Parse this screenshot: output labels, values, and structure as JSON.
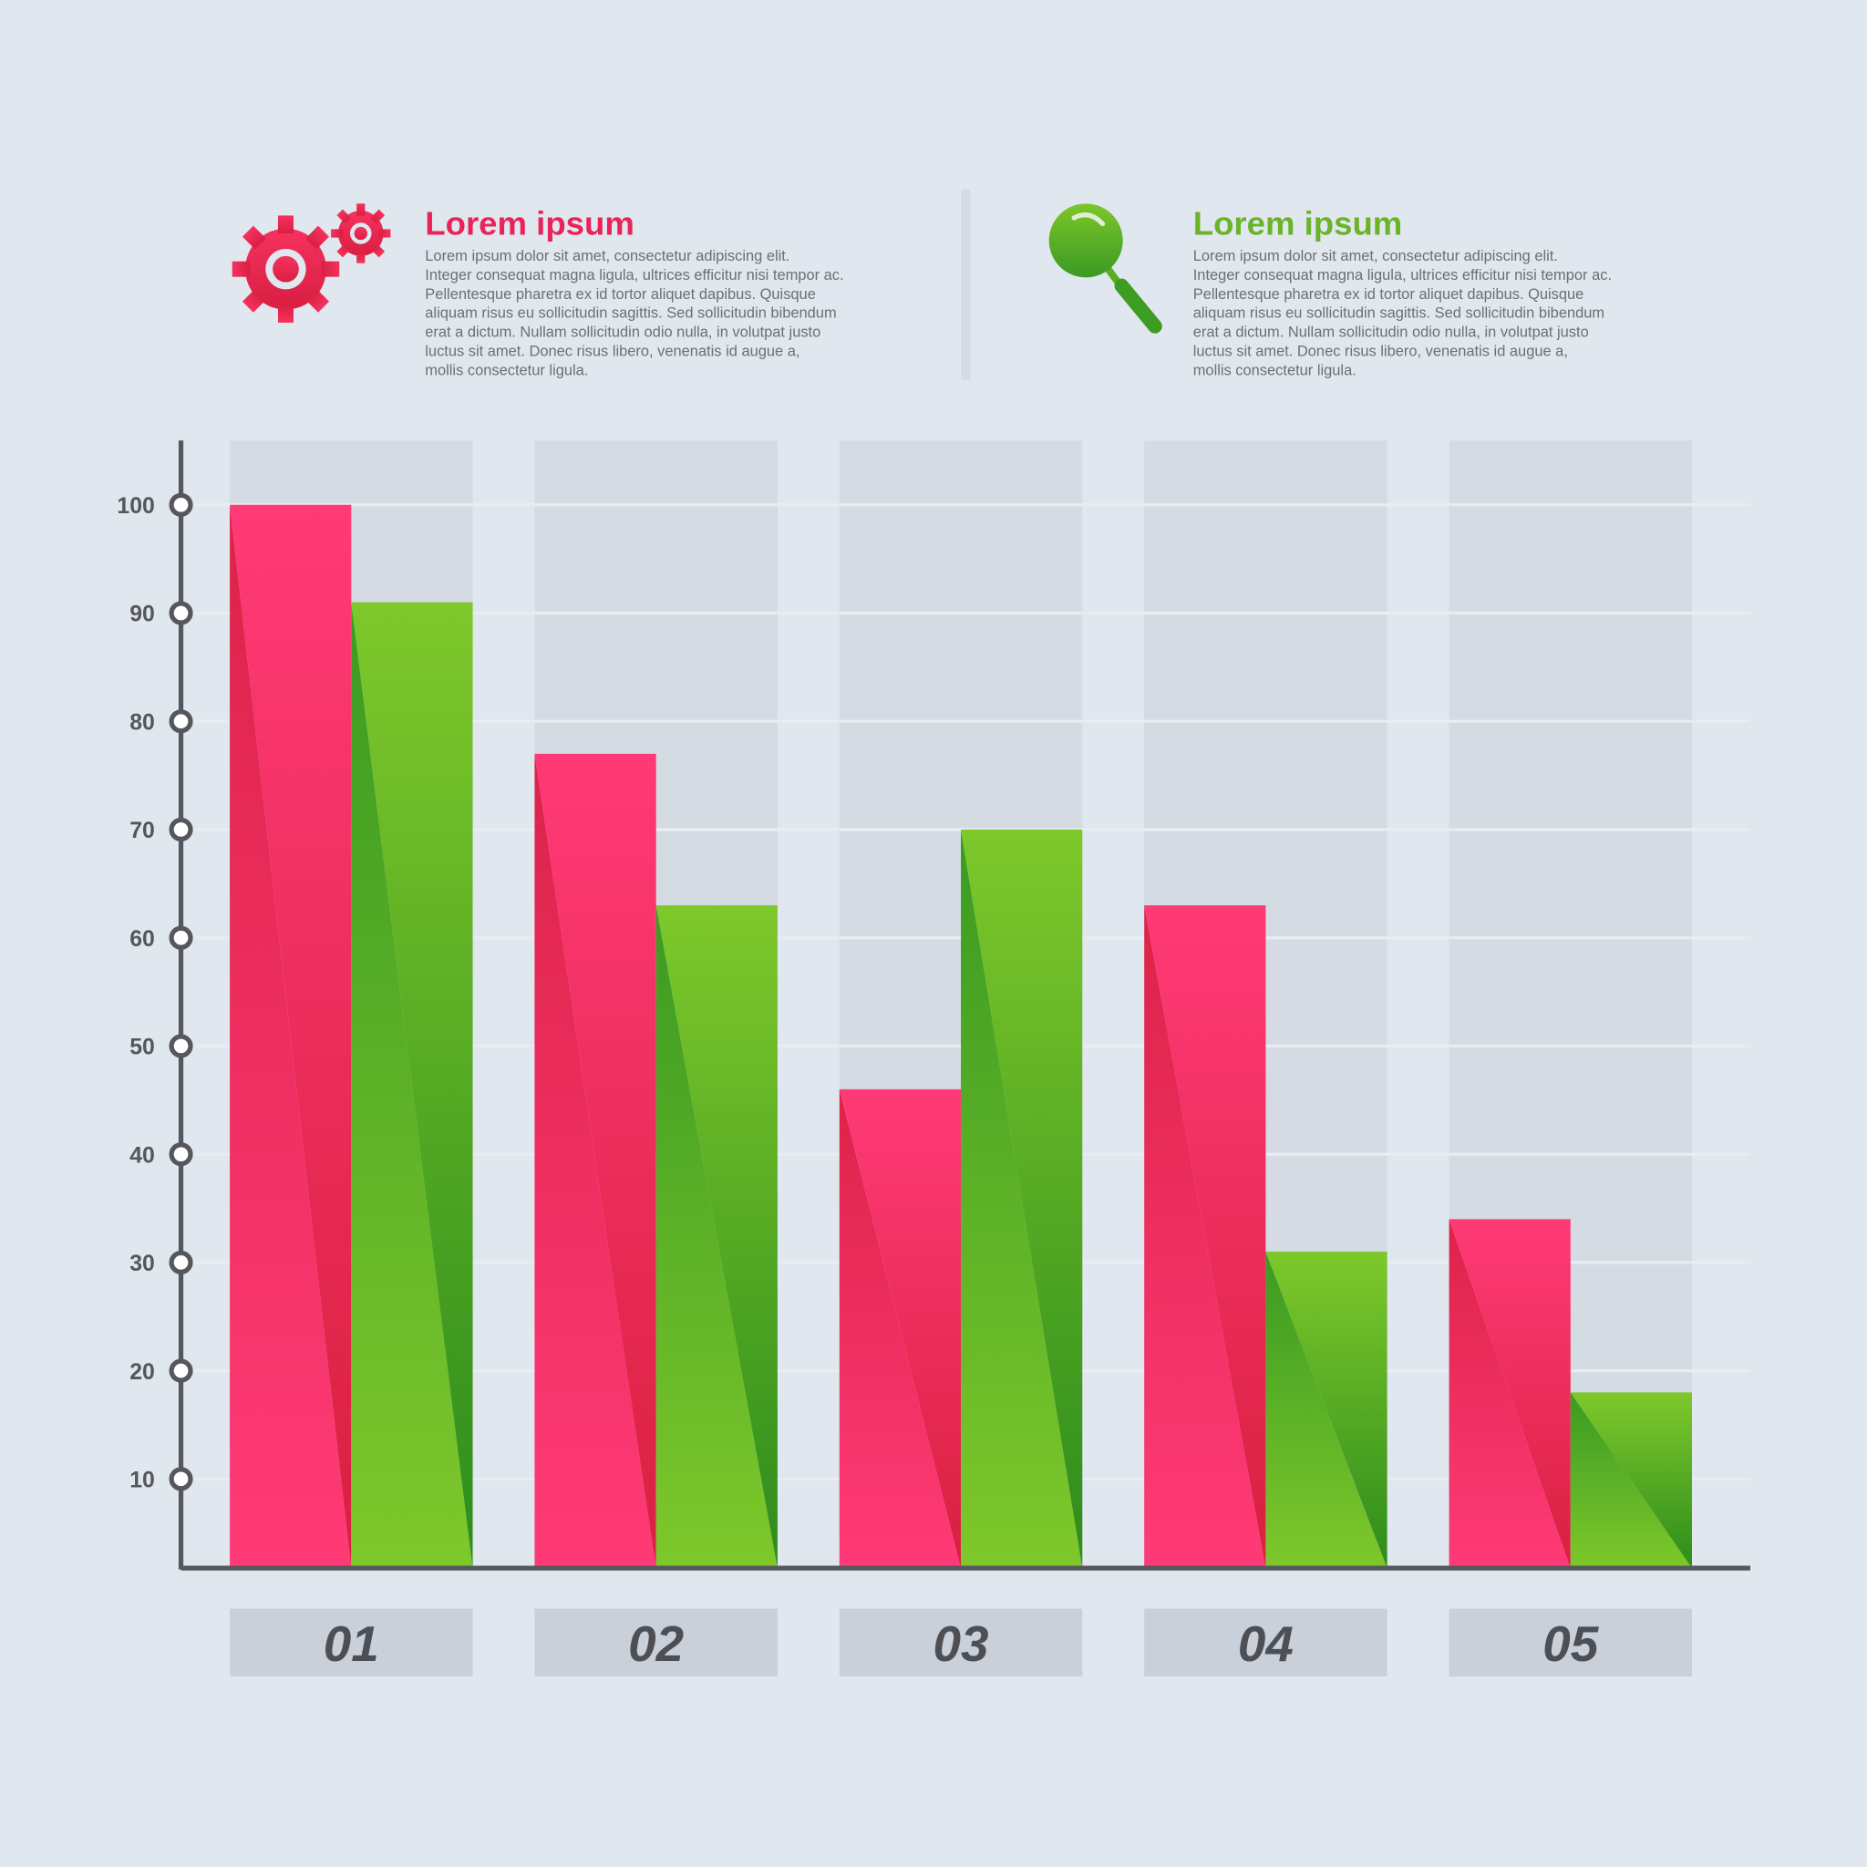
{
  "header": {
    "left": {
      "icon": "gears-icon",
      "title": "Lorem ipsum",
      "color": "#e8245a",
      "lines": [
        "Lorem ipsum dolor sit amet, consectetur adipiscing elit.",
        "Integer consequat magna ligula, ultrices efficitur nisi tempor ac.",
        "Pellentesque pharetra ex id tortor aliquet dapibus. Quisque",
        "aliquam risus eu sollicitudin sagittis. Sed sollicitudin bibendum",
        "erat a dictum. Nullam sollicitudin odio nulla, in volutpat justo",
        "luctus sit amet. Donec risus libero, venenatis id augue a,",
        "mollis consectetur ligula."
      ]
    },
    "right": {
      "icon": "magnifier-icon",
      "title": "Lorem ipsum",
      "color": "#6ab42a",
      "lines": [
        "Lorem ipsum dolor sit amet, consectetur adipiscing elit.",
        "Integer consequat magna ligula, ultrices efficitur nisi tempor ac.",
        "Pellentesque pharetra ex id tortor aliquet dapibus. Quisque",
        "aliquam risus eu sollicitudin sagittis. Sed sollicitudin bibendum",
        "erat a dictum. Nullam sollicitudin odio nulla, in volutpat justo",
        "luctus sit amet. Donec risus libero, venenatis id augue a,",
        "mollis consectetur ligula."
      ]
    }
  },
  "chart_data": {
    "type": "bar",
    "categories": [
      "01",
      "02",
      "03",
      "04",
      "05"
    ],
    "series": [
      {
        "color": "#ff3a77",
        "values": [
          100,
          77,
          46,
          63,
          34
        ]
      },
      {
        "color": "#7cc62a",
        "values": [
          91,
          63,
          70,
          31,
          18
        ]
      }
    ],
    "yticks": [
      10,
      20,
      30,
      40,
      50,
      60,
      70,
      80,
      90,
      100
    ],
    "ylim": [
      0,
      105
    ],
    "grid": true,
    "legend": "none"
  }
}
